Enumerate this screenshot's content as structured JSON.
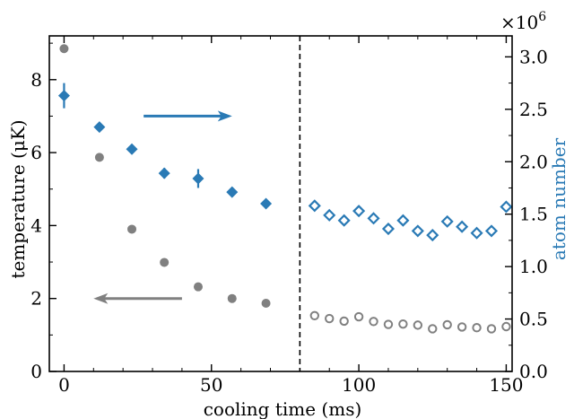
{
  "chart_data": {
    "type": "scatter",
    "xlabel": "cooling time (ms)",
    "ylabel_left": "temperature (μK)",
    "ylabel_right": "atom number",
    "right_multiplier": "×10",
    "right_multiplier_exp": "6",
    "xlim": [
      -5,
      152
    ],
    "ylim_left": [
      0,
      9.2
    ],
    "ylim_right": [
      0.0,
      3200000.0
    ],
    "x_ticks": [
      0,
      50,
      100,
      150
    ],
    "y_ticks_left": [
      0,
      2,
      4,
      6,
      8
    ],
    "y_ticks_right": [
      "0.0",
      "0.5",
      "1.0",
      "1.5",
      "2.0",
      "2.5",
      "3.0"
    ],
    "divider_x": 80,
    "colors": {
      "temperature": "#808080",
      "atom_number": "#2a7ab5"
    },
    "series": [
      {
        "axis": "left",
        "marker": "circle-filled",
        "x": [
          0,
          12,
          23,
          34,
          45.5,
          57,
          68.5
        ],
        "y": [
          8.85,
          5.87,
          3.9,
          2.99,
          2.32,
          2.0,
          1.87
        ]
      },
      {
        "axis": "left",
        "marker": "circle-open",
        "x": [
          85,
          90,
          95,
          100,
          105,
          110,
          115,
          120,
          125,
          130,
          135,
          140,
          145,
          150
        ],
        "y": [
          1.53,
          1.45,
          1.38,
          1.5,
          1.37,
          1.29,
          1.3,
          1.27,
          1.17,
          1.28,
          1.22,
          1.2,
          1.17,
          1.23
        ]
      },
      {
        "axis": "right",
        "marker": "diamond-filled",
        "x": [
          0,
          12,
          23,
          34,
          45.5,
          57,
          68.5
        ],
        "y": [
          2630000.0,
          2330000.0,
          2120000.0,
          1890000.0,
          1840000.0,
          1710000.0,
          1600000.0
        ],
        "err": [
          120000.0,
          0,
          0,
          50000.0,
          90000.0,
          0,
          0
        ]
      },
      {
        "axis": "right",
        "marker": "diamond-open",
        "x": [
          85,
          90,
          95,
          100,
          105,
          110,
          115,
          120,
          125,
          130,
          135,
          140,
          145,
          150
        ],
        "y": [
          1580000.0,
          1490000.0,
          1440000.0,
          1530000.0,
          1460000.0,
          1360000.0,
          1440000.0,
          1340000.0,
          1300000.0,
          1430000.0,
          1380000.0,
          1320000.0,
          1340000.0,
          1570000.0
        ]
      }
    ],
    "arrows": [
      {
        "color": "atom_number",
        "direction": "right",
        "from": [
          27,
          7.0
        ],
        "to": [
          57,
          7.0
        ]
      },
      {
        "color": "temperature",
        "direction": "left",
        "from": [
          40,
          2.0
        ],
        "to": [
          10,
          2.0
        ]
      }
    ]
  }
}
